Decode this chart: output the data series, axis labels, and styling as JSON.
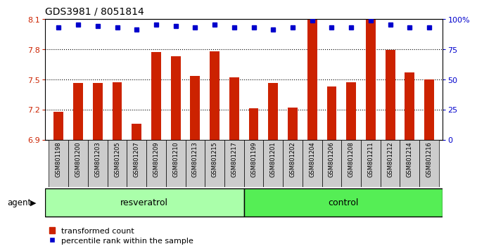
{
  "title": "GDS3981 / 8051814",
  "samples": [
    "GSM801198",
    "GSM801200",
    "GSM801203",
    "GSM801205",
    "GSM801207",
    "GSM801209",
    "GSM801210",
    "GSM801213",
    "GSM801215",
    "GSM801217",
    "GSM801199",
    "GSM801201",
    "GSM801202",
    "GSM801204",
    "GSM801206",
    "GSM801208",
    "GSM801211",
    "GSM801212",
    "GSM801214",
    "GSM801216"
  ],
  "bar_values": [
    7.18,
    7.46,
    7.46,
    7.47,
    7.06,
    7.77,
    7.73,
    7.53,
    7.78,
    7.52,
    7.21,
    7.46,
    7.22,
    8.09,
    7.43,
    7.47,
    8.09,
    7.79,
    7.57,
    7.5
  ],
  "percentile_values": [
    93,
    95,
    94,
    93,
    91,
    95,
    94,
    93,
    95,
    93,
    93,
    91,
    93,
    99,
    93,
    93,
    99,
    95,
    93,
    93
  ],
  "ylim_left": [
    6.9,
    8.1
  ],
  "ylim_right": [
    0,
    100
  ],
  "yticks_left": [
    6.9,
    7.2,
    7.5,
    7.8,
    8.1
  ],
  "yticks_right": [
    0,
    25,
    50,
    75,
    100
  ],
  "ytick_labels_left": [
    "6.9",
    "7.2",
    "7.5",
    "7.8",
    "8.1"
  ],
  "ytick_labels_right": [
    "0",
    "25",
    "50",
    "75",
    "100%"
  ],
  "hgrid_lines": [
    7.2,
    7.5,
    7.8
  ],
  "bar_color": "#cc2200",
  "dot_color": "#0000cc",
  "resveratrol_label": "resveratrol",
  "control_label": "control",
  "agent_label": "agent",
  "legend_bar_label": "transformed count",
  "legend_dot_label": "percentile rank within the sample",
  "group_boundary": 10,
  "resveratrol_color": "#aaffaa",
  "control_color": "#55ee55",
  "background_color": "#ffffff",
  "tick_bg_color": "#cccccc",
  "bar_width": 0.5,
  "dot_markersize": 5
}
